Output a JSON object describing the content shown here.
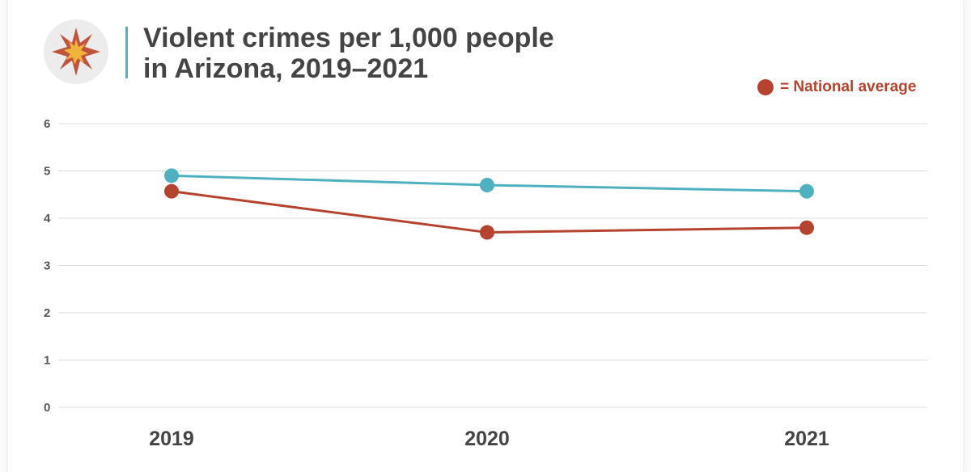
{
  "title_line1": "Violent crimes per 1,000 people",
  "title_line2": "in Arizona, 2019–2021",
  "legend_label": "= National average",
  "logo_icon": "explosion-burst-icon",
  "colors": {
    "arizona": "#4fb1bf",
    "national": "#b5432f",
    "grid": "#dcdcdc",
    "title_rule": "#4cb0bd"
  },
  "chart_data": {
    "type": "line",
    "categories": [
      "2019",
      "2020",
      "2021"
    ],
    "y_ticks": [
      "0",
      "1",
      "2",
      "3",
      "4",
      "5",
      "6"
    ],
    "ylim": [
      0,
      6
    ],
    "grid": true,
    "legend_position": "top-right",
    "series": [
      {
        "values": [
          4.9,
          4.7,
          4.57
        ],
        "color": "#4fb1bf"
      },
      {
        "name": "National average",
        "values": [
          4.57,
          3.7,
          3.8
        ],
        "color": "#b5432f"
      }
    ]
  }
}
